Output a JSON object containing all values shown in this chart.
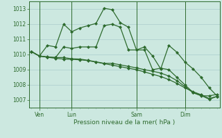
{
  "background_color": "#cce8e0",
  "grid_color": "#aacccc",
  "line_color": "#2d6a2d",
  "title": "Pression niveau de la mer( hPa )",
  "ylim": [
    1006.5,
    1013.5
  ],
  "yticks": [
    1007,
    1008,
    1009,
    1010,
    1011,
    1012,
    1013
  ],
  "day_labels": [
    "Ven",
    "Lun",
    "Sam",
    "Dim"
  ],
  "day_positions": [
    1,
    5,
    13,
    19
  ],
  "series": [
    [
      1010.2,
      1009.9,
      1010.6,
      1010.5,
      1012.0,
      1011.5,
      1011.75,
      1011.9,
      1012.05,
      1013.05,
      1012.95,
      1012.1,
      1011.8,
      1010.3,
      1010.5,
      1009.9,
      1009.05,
      1010.6,
      1010.15,
      1009.5,
      1009.05,
      1008.5,
      1007.8,
      1007.25
    ],
    [
      1010.2,
      1009.9,
      1009.85,
      1009.8,
      1010.5,
      1010.4,
      1010.5,
      1010.5,
      1010.5,
      1011.9,
      1012.0,
      1011.8,
      1010.3,
      1010.3,
      1010.3,
      1009.0,
      1009.1,
      1009.0,
      1008.5,
      1008.0,
      1007.5,
      1007.3,
      1007.05,
      1007.25
    ],
    [
      1010.2,
      1009.9,
      1009.82,
      1009.75,
      1009.7,
      1009.68,
      1009.65,
      1009.6,
      1009.5,
      1009.4,
      1009.3,
      1009.2,
      1009.1,
      1009.0,
      1008.85,
      1008.7,
      1008.55,
      1008.35,
      1008.1,
      1007.8,
      1007.55,
      1007.35,
      1007.1,
      1007.25
    ],
    [
      1010.2,
      1009.9,
      1009.82,
      1009.8,
      1009.8,
      1009.72,
      1009.7,
      1009.62,
      1009.52,
      1009.42,
      1009.42,
      1009.32,
      1009.22,
      1009.12,
      1009.0,
      1008.9,
      1008.78,
      1008.58,
      1008.28,
      1007.88,
      1007.48,
      1007.28,
      1007.28,
      1007.38
    ]
  ],
  "marker": "D",
  "markersize": 2.0,
  "linewidth": 0.9
}
